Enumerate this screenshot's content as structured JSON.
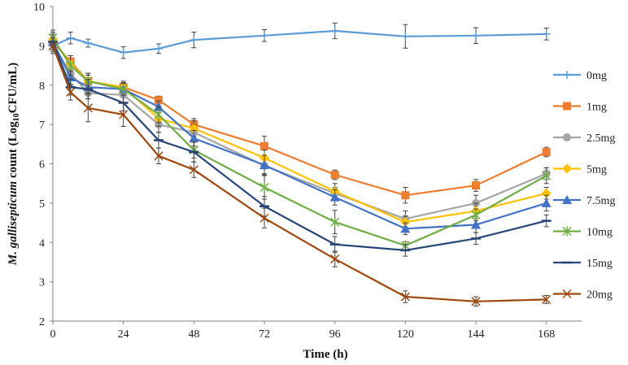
{
  "chart_data": {
    "type": "line",
    "title": "",
    "xlabel": "Time (h)",
    "ylabel_italic": "M. gallisepticum",
    "ylabel_rest": " count (Log",
    "ylabel_sub": "10",
    "ylabel_end": "CFU/mL)",
    "xlim": [
      0,
      180
    ],
    "ylim": [
      2,
      10
    ],
    "x_ticks": [
      0,
      24,
      48,
      72,
      96,
      120,
      144,
      168
    ],
    "y_ticks": [
      2,
      3,
      4,
      5,
      6,
      7,
      8,
      9,
      10
    ],
    "x": [
      0,
      6,
      12,
      24,
      36,
      48,
      72,
      96,
      120,
      144,
      168
    ],
    "series": [
      {
        "name": "0mg",
        "color": "#5b9bd5",
        "marker": "plus",
        "values": [
          9.0,
          9.2,
          9.07,
          8.83,
          8.93,
          9.15,
          9.26,
          9.38,
          9.24,
          9.26,
          9.3
        ],
        "errors": [
          0.2,
          0.15,
          0.1,
          0.15,
          0.12,
          0.2,
          0.15,
          0.2,
          0.3,
          0.2,
          0.15
        ]
      },
      {
        "name": "1mg",
        "color": "#ed7d31",
        "marker": "square",
        "values": [
          9.1,
          8.6,
          8.1,
          7.95,
          7.62,
          7.0,
          6.45,
          5.72,
          5.2,
          5.45,
          6.3
        ],
        "errors": [
          0.15,
          0.15,
          0.15,
          0.12,
          0.1,
          0.15,
          0.25,
          0.12,
          0.2,
          0.15,
          0.12
        ]
      },
      {
        "name": "2.5mg",
        "color": "#a5a5a5",
        "marker": "circle",
        "values": [
          9.05,
          8.3,
          7.8,
          7.75,
          7.0,
          6.8,
          5.95,
          5.25,
          4.6,
          5.0,
          5.75
        ],
        "errors": [
          0.2,
          0.3,
          0.15,
          0.2,
          0.2,
          0.2,
          0.2,
          0.15,
          0.2,
          0.2,
          0.15
        ]
      },
      {
        "name": "5mg",
        "color": "#ffc000",
        "marker": "diamond",
        "values": [
          9.15,
          8.55,
          8.1,
          7.95,
          7.15,
          6.9,
          6.15,
          5.3,
          4.52,
          4.8,
          5.25
        ],
        "errors": [
          0.2,
          0.2,
          0.2,
          0.15,
          0.2,
          0.2,
          0.2,
          0.2,
          0.15,
          0.2,
          0.15
        ]
      },
      {
        "name": "7.5mg",
        "color": "#4472c4",
        "marker": "triangle",
        "values": [
          9.1,
          8.2,
          7.95,
          7.9,
          7.45,
          6.65,
          5.97,
          5.15,
          4.35,
          4.45,
          5.0
        ],
        "errors": [
          0.2,
          0.2,
          0.15,
          0.15,
          0.15,
          0.2,
          0.25,
          0.2,
          0.15,
          0.2,
          0.2
        ]
      },
      {
        "name": "10mg",
        "color": "#70ad47",
        "marker": "star",
        "values": [
          9.2,
          8.5,
          8.1,
          7.9,
          7.25,
          6.35,
          5.4,
          4.52,
          3.92,
          4.7,
          5.7
        ],
        "errors": [
          0.2,
          0.25,
          0.2,
          0.15,
          0.2,
          0.2,
          0.3,
          0.3,
          0.1,
          0.15,
          0.2
        ]
      },
      {
        "name": "15mg",
        "color": "#264478",
        "marker": "dash",
        "values": [
          9.1,
          7.95,
          7.9,
          7.55,
          6.6,
          6.3,
          4.92,
          3.95,
          3.8,
          4.1,
          4.55
        ],
        "errors": [
          0.2,
          0.2,
          0.25,
          0.2,
          0.2,
          0.25,
          0.25,
          0.2,
          0.15,
          0.15,
          0.15
        ]
      },
      {
        "name": "20mg",
        "color": "#9e480e",
        "marker": "x",
        "values": [
          9.0,
          7.82,
          7.42,
          7.25,
          6.2,
          5.85,
          4.62,
          3.58,
          2.62,
          2.5,
          2.55
        ],
        "errors": [
          0.2,
          0.2,
          0.35,
          0.3,
          0.2,
          0.2,
          0.25,
          0.2,
          0.15,
          0.12,
          0.1
        ]
      }
    ]
  }
}
